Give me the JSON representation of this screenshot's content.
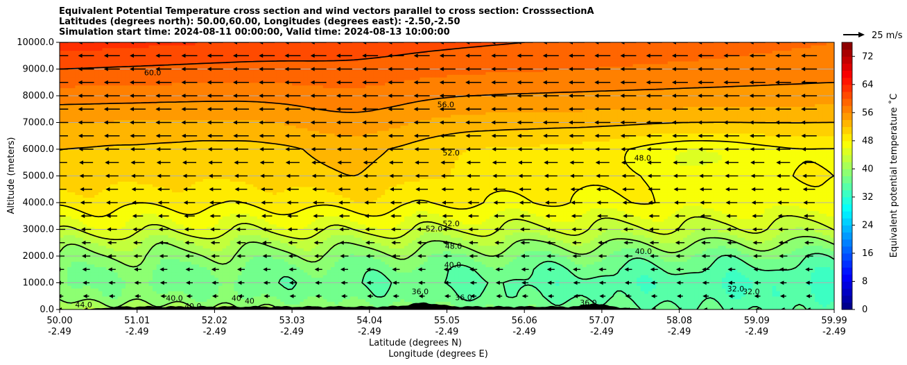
{
  "chart_data": {
    "type": "heatmap",
    "title_lines": [
      "Equivalent Potential Temperature cross section and wind vectors parallel to cross section: CrosssectionA",
      "Latitudes (degrees north): 50.00,60.00, Longitudes (degrees east): -2.50,-2.50",
      "Simulation start time: 2024-08-11 00:00:00, Valid time: 2024-08-13 10:00:00"
    ],
    "ylabel": "Altitude (meters)",
    "xlabel_lines": [
      "Latitude (degrees N)",
      "Longitude (degrees E)"
    ],
    "ylim": [
      0,
      10000
    ],
    "xlim": [
      50.0,
      59.99
    ],
    "y_ticks": [
      0,
      1000,
      2000,
      3000,
      4000,
      5000,
      6000,
      7000,
      8000,
      9000,
      10000
    ],
    "y_tick_labels": [
      "0.0",
      "1000.0",
      "2000.0",
      "3000.0",
      "4000.0",
      "5000.0",
      "6000.0",
      "7000.0",
      "8000.0",
      "9000.0",
      "10000.0"
    ],
    "x_ticks": [
      {
        "lat": "50.00",
        "lon": "-2.49"
      },
      {
        "lat": "51.01",
        "lon": "-2.49"
      },
      {
        "lat": "52.02",
        "lon": "-2.49"
      },
      {
        "lat": "53.03",
        "lon": "-2.49"
      },
      {
        "lat": "54.04",
        "lon": "-2.49"
      },
      {
        "lat": "55.05",
        "lon": "-2.49"
      },
      {
        "lat": "56.06",
        "lon": "-2.49"
      },
      {
        "lat": "57.07",
        "lon": "-2.49"
      },
      {
        "lat": "58.08",
        "lon": "-2.49"
      },
      {
        "lat": "59.09",
        "lon": "-2.49"
      },
      {
        "lat": "59.99",
        "lon": "-2.49"
      }
    ],
    "grid": true,
    "colorbar": {
      "label": "Equivalent potential temperature ˚C",
      "min": 0,
      "max": 76,
      "step": 2,
      "ticks": [
        0,
        8,
        16,
        24,
        32,
        40,
        48,
        56,
        64,
        72
      ],
      "tick_labels": [
        "0",
        "8",
        "16",
        "24",
        "32",
        "40",
        "48",
        "56",
        "64",
        "72"
      ]
    },
    "quiver_key": {
      "label": "25 m/s",
      "value": 25
    },
    "theta_e_profile": {
      "altitudes": [
        0,
        500,
        1000,
        1500,
        2000,
        2500,
        3000,
        3500,
        4000,
        5000,
        6000,
        7000,
        8000,
        9000,
        10000
      ],
      "values_west": [
        42,
        39,
        38,
        38.5,
        40,
        42,
        45,
        47,
        49,
        51,
        52,
        54,
        57,
        60,
        63
      ],
      "values_east": [
        35,
        34,
        33.5,
        35,
        37,
        40,
        43,
        45,
        47,
        48,
        48,
        52,
        55,
        57,
        58
      ]
    },
    "contour_labels": [
      {
        "text": "60.0",
        "lat": 51.2,
        "alt": 8850
      },
      {
        "text": "56.0",
        "lat": 54.98,
        "alt": 7650
      },
      {
        "text": "52.0",
        "lat": 55.05,
        "alt": 5850
      },
      {
        "text": "48.0",
        "lat": 57.52,
        "alt": 5650
      },
      {
        "text": "52.0",
        "lat": 55.05,
        "alt": 3200
      },
      {
        "text": "52.0",
        "lat": 54.83,
        "alt": 3000
      },
      {
        "text": "48.0",
        "lat": 55.08,
        "alt": 2350
      },
      {
        "text": "40.0",
        "lat": 55.07,
        "alt": 1650
      },
      {
        "text": "40.0",
        "lat": 57.53,
        "alt": 2150
      },
      {
        "text": "36.0",
        "lat": 54.65,
        "alt": 650
      },
      {
        "text": "36.0",
        "lat": 55.21,
        "alt": 430
      },
      {
        "text": "36.0",
        "lat": 56.82,
        "alt": 230
      },
      {
        "text": "32.0",
        "lat": 58.72,
        "alt": 750
      },
      {
        "text": "32.0",
        "lat": 58.92,
        "alt": 650
      },
      {
        "text": "44.0",
        "lat": 50.31,
        "alt": 150
      },
      {
        "text": "40.0",
        "lat": 51.48,
        "alt": 400
      },
      {
        "text": "40.0",
        "lat": 51.72,
        "alt": 100
      },
      {
        "text": "40",
        "lat": 52.28,
        "alt": 400
      },
      {
        "text": "40",
        "lat": 52.45,
        "alt": 300
      }
    ],
    "wind_direction": "southward (toward decreasing latitude), strongest aloft"
  },
  "colors": {
    "terrain": "#000000",
    "contour": "#000000",
    "arrow": "#000000",
    "grid": "#b0b0b0"
  }
}
